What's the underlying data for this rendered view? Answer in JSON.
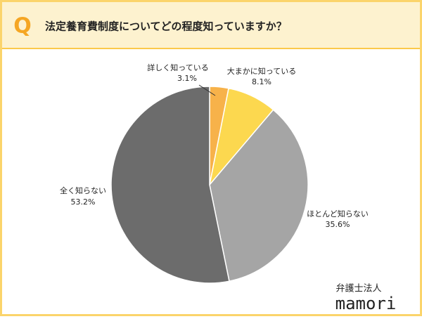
{
  "header": {
    "icon": "Q"
  },
  "chart_data": {
    "type": "pie",
    "title": "法定養育費制度についてどの程度知っていますか？",
    "categories": [
      "詳しく知っている",
      "大まかに知っている",
      "ほとんど知らない",
      "全く知らない"
    ],
    "values": [
      3.1,
      8.1,
      35.6,
      53.2
    ],
    "value_labels": [
      "3.1%",
      "8.1%",
      "35.6%",
      "53.2%"
    ],
    "colors": [
      "#f7b24a",
      "#fcd84f",
      "#a5a5a5",
      "#6c6c6c"
    ]
  },
  "logo": {
    "line1": "弁護士法人",
    "line2": "mamori"
  }
}
